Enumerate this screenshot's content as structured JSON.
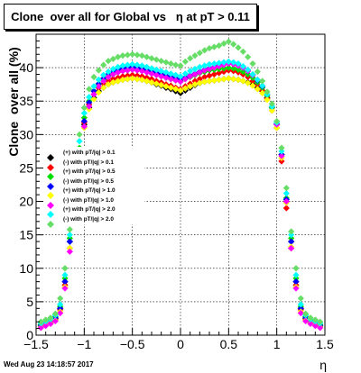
{
  "chart_data": {
    "type": "scatter",
    "title": "Clone  over all for Global vs   η at pT > 0.11",
    "xlabel": "η",
    "ylabel": "Clone  over all (%)",
    "xlim": [
      -1.5,
      1.5
    ],
    "ylim": [
      0,
      45
    ],
    "x_ticks": [
      "−1.5",
      "−1",
      "−0.5",
      "0",
      "0.5",
      "1",
      "1.5"
    ],
    "y_ticks": [
      "0",
      "5",
      "10",
      "15",
      "20",
      "25",
      "30",
      "35",
      "40"
    ],
    "grid": true,
    "legend_position": "left",
    "x": [
      -1.45,
      -1.4,
      -1.35,
      -1.3,
      -1.25,
      -1.2,
      -1.15,
      -1.1,
      -1.05,
      -1.0,
      -0.95,
      -0.9,
      -0.85,
      -0.8,
      -0.75,
      -0.7,
      -0.65,
      -0.6,
      -0.55,
      -0.5,
      -0.45,
      -0.4,
      -0.35,
      -0.3,
      -0.25,
      -0.2,
      -0.15,
      -0.1,
      -0.05,
      0.0,
      0.05,
      0.1,
      0.15,
      0.2,
      0.25,
      0.3,
      0.35,
      0.4,
      0.45,
      0.5,
      0.55,
      0.6,
      0.65,
      0.7,
      0.75,
      0.8,
      0.85,
      0.9,
      0.95,
      1.0,
      1.05,
      1.1,
      1.15,
      1.2,
      1.25,
      1.3,
      1.35,
      1.4,
      1.45
    ],
    "series": [
      {
        "name": "(+) with pT/|q| > 0.1",
        "color": "#000000",
        "values": [
          1.5,
          1.8,
          2.0,
          2.5,
          4.0,
          8.0,
          14.0,
          20.0,
          27.0,
          31.5,
          34.0,
          35.5,
          36.5,
          37.0,
          37.5,
          37.8,
          38.0,
          38.2,
          38.3,
          38.4,
          38.3,
          38.2,
          38.0,
          37.8,
          37.5,
          37.3,
          37.0,
          36.8,
          36.5,
          36.2,
          36.6,
          37.0,
          37.4,
          37.7,
          37.9,
          38.0,
          38.1,
          38.2,
          38.3,
          38.4,
          38.3,
          38.2,
          38.0,
          37.8,
          37.5,
          37.0,
          36.5,
          35.5,
          34.0,
          31.5,
          27.0,
          20.0,
          14.0,
          8.0,
          4.0,
          2.5,
          2.0,
          1.8,
          1.5
        ]
      },
      {
        "name": "(-) with pT/|q| > 0.1",
        "color": "#ff0000",
        "values": [
          1.3,
          1.6,
          1.9,
          2.4,
          3.8,
          7.5,
          13.0,
          19.5,
          26.5,
          31.8,
          34.5,
          36.0,
          37.0,
          37.6,
          38.0,
          38.3,
          38.5,
          38.7,
          38.8,
          38.9,
          38.8,
          38.7,
          38.5,
          38.3,
          38.0,
          37.8,
          37.5,
          37.3,
          37.0,
          36.8,
          37.2,
          37.6,
          38.0,
          38.3,
          38.6,
          38.8,
          39.0,
          39.2,
          39.4,
          39.6,
          39.5,
          39.3,
          39.0,
          38.6,
          38.0,
          37.4,
          36.6,
          35.4,
          33.6,
          31.0,
          26.0,
          19.0,
          13.0,
          7.5,
          3.8,
          2.4,
          1.9,
          1.6,
          1.3
        ]
      },
      {
        "name": "(+) with pT/|q| > 0.5",
        "color": "#00dd00",
        "values": [
          1.6,
          1.9,
          2.2,
          2.8,
          4.3,
          8.5,
          14.5,
          21.0,
          28.0,
          32.5,
          35.0,
          36.5,
          37.5,
          38.2,
          38.7,
          39.0,
          39.3,
          39.5,
          39.6,
          39.7,
          39.6,
          39.5,
          39.3,
          39.1,
          38.9,
          38.7,
          38.5,
          38.3,
          38.1,
          38.0,
          38.3,
          38.6,
          38.9,
          39.2,
          39.4,
          39.6,
          39.7,
          39.8,
          39.9,
          40.0,
          39.9,
          39.7,
          39.4,
          39.0,
          38.5,
          37.8,
          37.0,
          35.8,
          34.0,
          31.5,
          27.0,
          20.5,
          14.5,
          8.5,
          4.3,
          2.8,
          2.2,
          1.9,
          1.6
        ]
      },
      {
        "name": "(-) with pT/|q| > 0.5",
        "color": "#0000ff",
        "values": [
          1.4,
          1.7,
          2.0,
          2.6,
          4.0,
          8.0,
          14.0,
          20.5,
          27.5,
          32.0,
          34.8,
          36.5,
          37.6,
          38.4,
          39.0,
          39.4,
          39.7,
          39.9,
          40.0,
          40.1,
          40.0,
          39.8,
          39.6,
          39.4,
          39.2,
          39.0,
          38.8,
          38.6,
          38.4,
          38.2,
          38.5,
          38.8,
          39.1,
          39.4,
          39.7,
          39.9,
          40.1,
          40.3,
          40.5,
          40.7,
          40.6,
          40.4,
          40.0,
          39.5,
          38.9,
          38.1,
          37.2,
          36.0,
          34.2,
          31.6,
          27.0,
          20.3,
          14.0,
          8.0,
          4.0,
          2.6,
          2.0,
          1.7,
          1.4
        ]
      },
      {
        "name": "(+) with pT/|q| > 1.0",
        "color": "#ffff00",
        "values": [
          1.2,
          1.5,
          1.8,
          2.2,
          3.5,
          7.2,
          13.0,
          19.5,
          26.5,
          31.0,
          33.8,
          35.3,
          36.3,
          37.0,
          37.5,
          37.8,
          38.0,
          38.2,
          38.3,
          38.4,
          38.3,
          38.2,
          38.0,
          37.8,
          37.6,
          37.4,
          37.2,
          37.0,
          36.8,
          36.6,
          36.9,
          37.2,
          37.5,
          37.7,
          37.9,
          38.0,
          38.1,
          38.2,
          38.3,
          38.4,
          38.3,
          38.2,
          38.0,
          37.7,
          37.3,
          36.8,
          36.2,
          35.2,
          33.6,
          31.0,
          26.5,
          19.8,
          13.2,
          7.2,
          3.5,
          2.2,
          1.8,
          1.5,
          1.2
        ]
      },
      {
        "name": "(-) with pT/|q| > 1.0",
        "color": "#ff00ff",
        "values": [
          1.1,
          1.4,
          1.7,
          2.1,
          3.3,
          7.0,
          12.5,
          19.0,
          26.0,
          31.2,
          34.2,
          36.0,
          37.2,
          38.0,
          38.6,
          39.0,
          39.3,
          39.5,
          39.6,
          39.7,
          39.6,
          39.5,
          39.3,
          39.1,
          38.9,
          38.7,
          38.5,
          38.3,
          38.1,
          37.9,
          38.3,
          38.7,
          39.0,
          39.3,
          39.6,
          39.8,
          40.0,
          40.2,
          40.4,
          40.6,
          40.5,
          40.3,
          40.0,
          39.5,
          38.9,
          38.2,
          37.3,
          36.0,
          34.2,
          31.5,
          26.8,
          20.0,
          13.0,
          7.0,
          3.3,
          2.1,
          1.7,
          1.4,
          1.1
        ]
      },
      {
        "name": "(+) with pT/|q| > 2.0",
        "color": "#00ffff",
        "values": [
          1.8,
          2.1,
          2.4,
          3.0,
          4.6,
          9.0,
          15.0,
          22.0,
          29.0,
          33.2,
          35.6,
          37.2,
          38.2,
          38.9,
          39.4,
          39.8,
          40.1,
          40.3,
          40.4,
          40.5,
          40.4,
          40.3,
          40.1,
          39.9,
          39.7,
          39.5,
          39.3,
          39.1,
          38.9,
          38.7,
          39.1,
          39.5,
          39.8,
          40.1,
          40.3,
          40.5,
          40.6,
          40.7,
          40.8,
          40.9,
          40.8,
          40.6,
          40.2,
          39.7,
          39.0,
          38.2,
          37.3,
          36.0,
          34.2,
          31.8,
          27.5,
          21.2,
          15.0,
          9.0,
          4.6,
          3.0,
          2.4,
          2.1,
          1.8
        ]
      },
      {
        "name": "(-) with pT/|q| > 2.0",
        "color": "#66dd66",
        "values": [
          2.0,
          2.3,
          2.6,
          3.2,
          5.5,
          10.0,
          15.8,
          23.0,
          30.0,
          34.0,
          36.8,
          38.6,
          39.6,
          40.4,
          41.0,
          41.3,
          41.6,
          41.8,
          41.9,
          42.0,
          41.9,
          41.8,
          41.6,
          41.4,
          41.2,
          41.0,
          40.8,
          40.6,
          40.4,
          40.3,
          40.9,
          41.4,
          41.8,
          42.2,
          42.6,
          42.9,
          43.1,
          43.3,
          43.6,
          43.9,
          43.5,
          43.0,
          42.4,
          41.6,
          40.6,
          39.4,
          38.0,
          36.4,
          34.6,
          32.0,
          28.0,
          22.0,
          15.5,
          10.0,
          5.5,
          3.2,
          2.6,
          2.3,
          2.0
        ]
      }
    ]
  },
  "footer": {
    "date": "Wed Aug 23 14:18:57 2017"
  }
}
